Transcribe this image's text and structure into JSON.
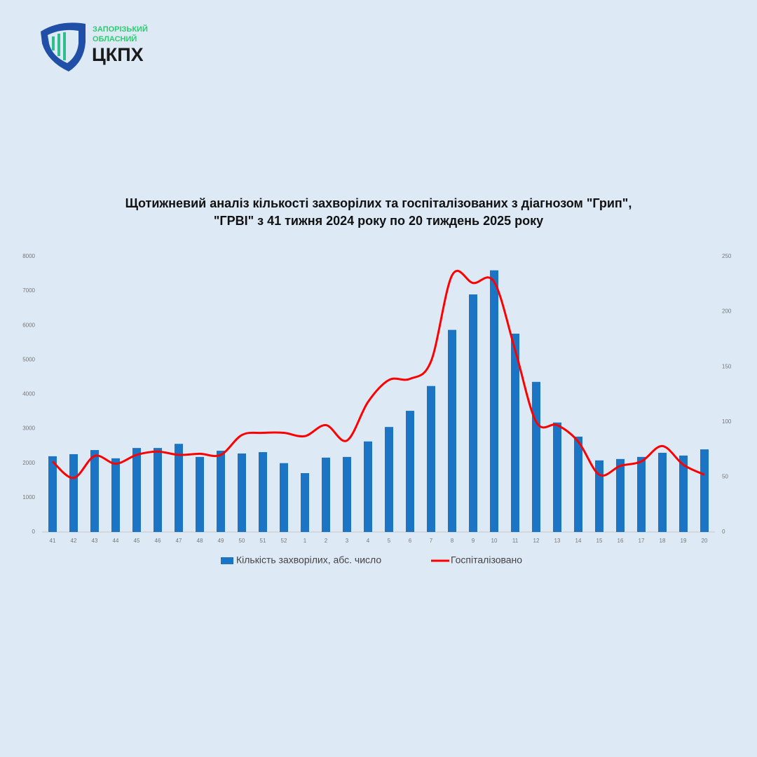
{
  "logo": {
    "line1": "ЗАПОРІЗЬКИЙ",
    "line2": "ОБЛАСНИЙ",
    "name": "ЦКПХ"
  },
  "chart_data": {
    "type": "bar-line",
    "title": [
      "Щотижневий аналіз кількості захворілих та госпіталізованих з діагнозом \"Грип\",",
      "\"ГРВІ\" з 41 тижня 2024 року по 20 тиждень 2025 року"
    ],
    "categories": [
      "41",
      "42",
      "43",
      "44",
      "45",
      "46",
      "47",
      "48",
      "49",
      "50",
      "51",
      "52",
      "1",
      "2",
      "3",
      "4",
      "5",
      "6",
      "7",
      "8",
      "9",
      "10",
      "11",
      "12",
      "13",
      "14",
      "15",
      "16",
      "17",
      "18",
      "19",
      "20"
    ],
    "series": [
      {
        "name": "Кількість захворілих, абс. число",
        "type": "bar",
        "color": "#1b75c4",
        "values": [
          2200,
          2260,
          2380,
          2140,
          2440,
          2440,
          2560,
          2180,
          2360,
          2280,
          2320,
          2000,
          1710,
          2160,
          2180,
          2630,
          3050,
          3520,
          4240,
          5870,
          6900,
          7600,
          5760,
          4360,
          3180,
          2770,
          2080,
          2120,
          2180,
          2300,
          2220,
          2400
        ]
      },
      {
        "name": "Госпіталізовано",
        "type": "line",
        "axis": "y2",
        "color": "#ff0000",
        "values": [
          64,
          49,
          69,
          62,
          70,
          73,
          70,
          71,
          70,
          88,
          90,
          90,
          87,
          97,
          83,
          118,
          138,
          139,
          155,
          233,
          226,
          227,
          165,
          100,
          97,
          82,
          52,
          60,
          64,
          78,
          61,
          52
        ]
      }
    ],
    "ylim": [
      0,
      8000
    ],
    "yticks": [
      0,
      1000,
      2000,
      3000,
      4000,
      5000,
      6000,
      7000,
      8000
    ],
    "y2lim": [
      0,
      250
    ],
    "y2ticks": [
      0,
      50,
      100,
      150,
      200,
      250
    ],
    "legend": "bottom",
    "grid": false
  }
}
